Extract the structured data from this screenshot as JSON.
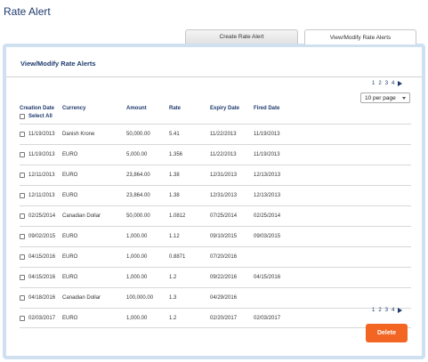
{
  "page": {
    "title": "Rate Alert"
  },
  "tabs": {
    "create": "Create Rate Alert",
    "view": "View/Modify Rate Alerts"
  },
  "panel": {
    "title": "View/Modify Rate Alerts"
  },
  "pagination": {
    "pages": [
      "1",
      "2",
      "3",
      "4"
    ],
    "next_icon": "triangle-right-icon"
  },
  "per_page": {
    "value": "10 per page"
  },
  "table": {
    "columns": {
      "creation_date": "Creation Date",
      "currency": "Currency",
      "amount": "Amount",
      "rate": "Rate",
      "expiry_date": "Expiry Date",
      "fired_date": "Fired Date"
    },
    "select_all": "Select All",
    "rows": [
      {
        "creation_date": "11/19/2013",
        "currency": "Danish Krone",
        "amount": "50,000.00",
        "rate": "5.41",
        "expiry_date": "11/22/2013",
        "fired_date": "11/19/2013"
      },
      {
        "creation_date": "11/19/2013",
        "currency": "EURO",
        "amount": "5,000.00",
        "rate": "1.356",
        "expiry_date": "11/22/2013",
        "fired_date": "11/19/2013"
      },
      {
        "creation_date": "12/11/2013",
        "currency": "EURO",
        "amount": "23,864.00",
        "rate": "1.38",
        "expiry_date": "12/31/2013",
        "fired_date": "12/13/2013"
      },
      {
        "creation_date": "12/11/2013",
        "currency": "EURO",
        "amount": "23,864.00",
        "rate": "1.38",
        "expiry_date": "12/31/2013",
        "fired_date": "12/13/2013"
      },
      {
        "creation_date": "02/25/2014",
        "currency": "Canadian Dollar",
        "amount": "50,000.00",
        "rate": "1.0812",
        "expiry_date": "07/25/2014",
        "fired_date": "02/25/2014"
      },
      {
        "creation_date": "09/02/2015",
        "currency": "EURO",
        "amount": "1,000.00",
        "rate": "1.12",
        "expiry_date": "09/10/2015",
        "fired_date": "09/03/2015"
      },
      {
        "creation_date": "04/15/2016",
        "currency": "EURO",
        "amount": "1,000.00",
        "rate": "0.8871",
        "expiry_date": "07/20/2016",
        "fired_date": ""
      },
      {
        "creation_date": "04/15/2016",
        "currency": "EURO",
        "amount": "1,000.00",
        "rate": "1.2",
        "expiry_date": "09/22/2016",
        "fired_date": "04/15/2016"
      },
      {
        "creation_date": "04/18/2016",
        "currency": "Canadian Dollar",
        "amount": "100,000.00",
        "rate": "1.3",
        "expiry_date": "04/29/2016",
        "fired_date": ""
      },
      {
        "creation_date": "02/03/2017",
        "currency": "EURO",
        "amount": "1,000.00",
        "rate": "1.2",
        "expiry_date": "02/20/2017",
        "fired_date": "02/03/2017"
      }
    ]
  },
  "actions": {
    "delete_label": "Delete"
  },
  "colors": {
    "accent": "#f26522",
    "brand": "#1e3a6e",
    "panel_border": "#cfe0f1"
  }
}
